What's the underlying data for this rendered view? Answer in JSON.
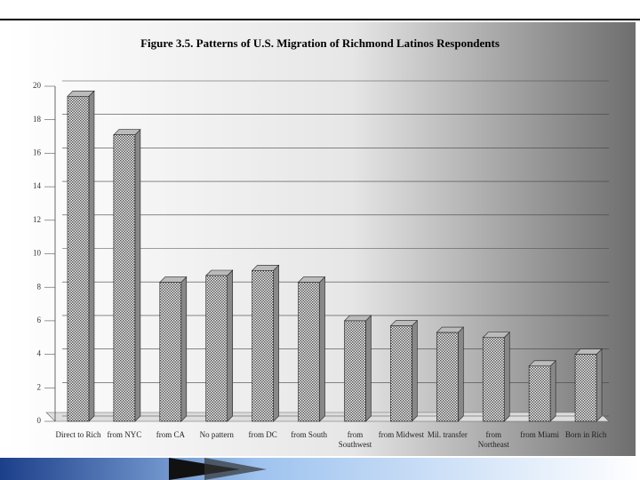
{
  "chart_data": {
    "type": "bar",
    "title": "Figure 3.5. Patterns of U.S. Migration of Richmond Latinos Respondents",
    "categories": [
      "Direct to Rich",
      "from NYC",
      "from CA",
      "No pattern",
      "from DC",
      "from South",
      "from Southwest",
      "from Midwest",
      "Mil. transfer",
      "from Northeast",
      "from Miami",
      "Born in Rich"
    ],
    "values": [
      19.4,
      17.1,
      8.3,
      8.7,
      9.0,
      8.3,
      6.0,
      5.7,
      5.3,
      5.0,
      3.3,
      4.0
    ],
    "color": "#888888",
    "ylim": [
      0,
      20
    ],
    "yticks": [
      0,
      2,
      4,
      6,
      8,
      10,
      12,
      14,
      16,
      18,
      20
    ],
    "grid": true
  }
}
